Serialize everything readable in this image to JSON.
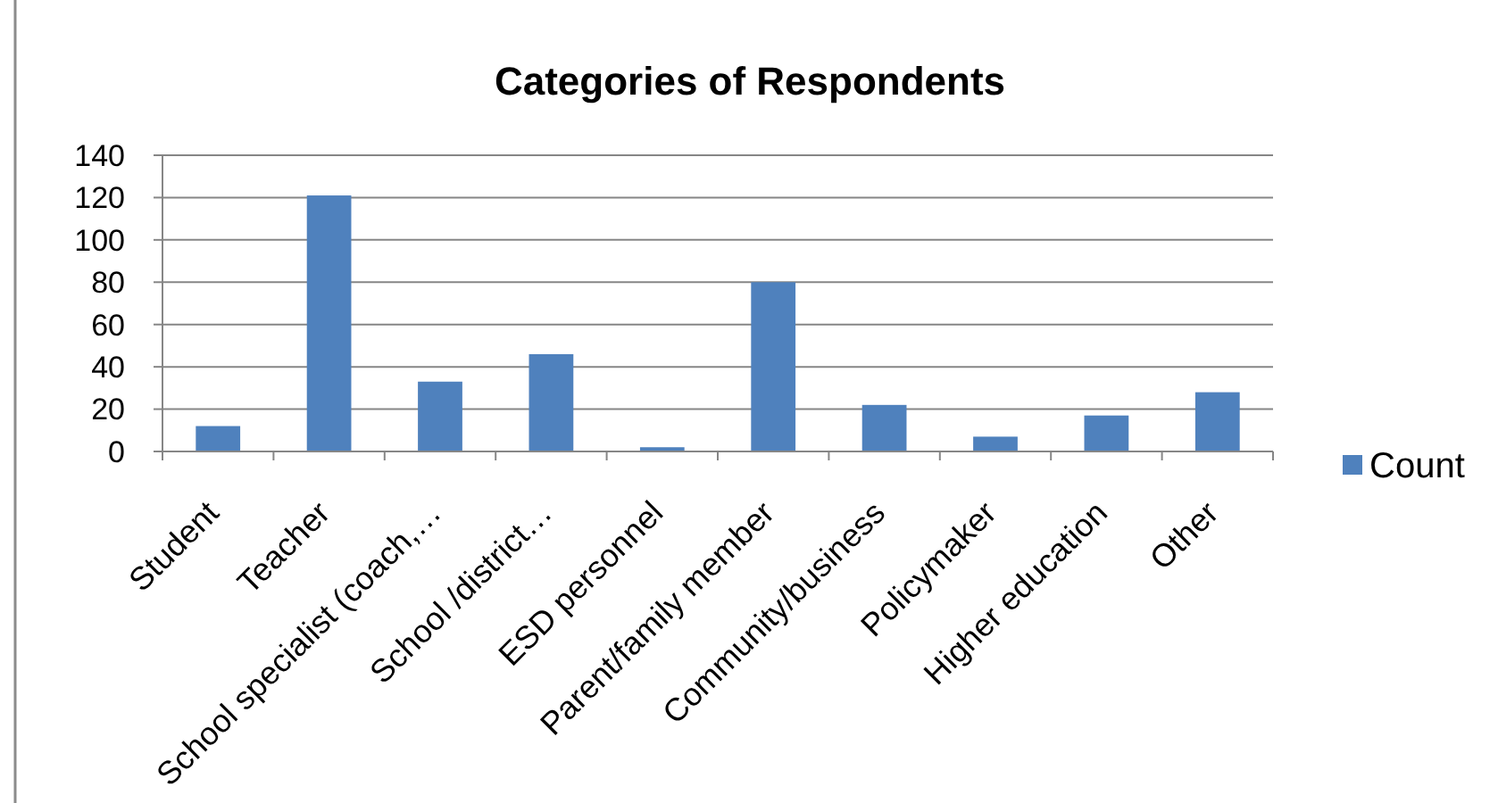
{
  "chart_data": {
    "type": "bar",
    "title": "Categories of Respondents",
    "categories": [
      "Student",
      "Teacher",
      "School specialist (coach,…",
      "School /district…",
      "ESD personnel",
      "Parent/family member",
      "Community/business",
      "Policymaker",
      "Higher education",
      "Other"
    ],
    "series": [
      {
        "name": "Count",
        "color": "#4f81bd",
        "values": [
          12,
          121,
          33,
          46,
          2,
          80,
          22,
          7,
          17,
          28
        ]
      }
    ],
    "ylim": [
      0,
      140
    ],
    "yticks": [
      0,
      20,
      40,
      60,
      80,
      100,
      120,
      140
    ],
    "grid": "y",
    "legend": "right"
  }
}
